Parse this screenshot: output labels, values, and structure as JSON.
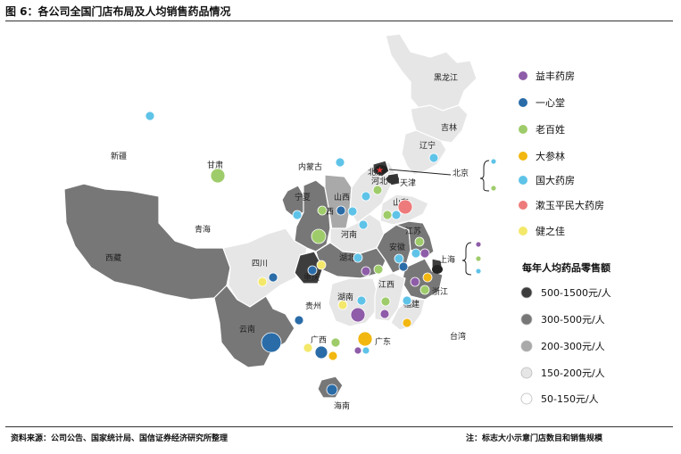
{
  "header": {
    "title": "图 6：各公司全国门店布局及人均销售药品情况"
  },
  "footer": {
    "source": "资料来源：公司公告、国家统计局、国信证券经济研究所整理",
    "note": "注：标志大小示意门店数目和销售规模"
  },
  "companies": [
    {
      "name": "益丰药房",
      "color": "#8e5ca8"
    },
    {
      "name": "一心堂",
      "color": "#2a6ca8"
    },
    {
      "name": "老百姓",
      "color": "#9fcc6a"
    },
    {
      "name": "大参林",
      "color": "#f2b710"
    },
    {
      "name": "国大药房",
      "color": "#5fc3e8"
    },
    {
      "name": "漱玉平民大药房",
      "color": "#ee7b7b"
    },
    {
      "name": "健之佳",
      "color": "#f3e86a"
    }
  ],
  "scale_legend": {
    "title": "每年人均药品零售额",
    "items": [
      {
        "label": "500-1500元/人",
        "color": "#3d3d3d"
      },
      {
        "label": "300-500元/人",
        "color": "#777777"
      },
      {
        "label": "200-300元/人",
        "color": "#a9a9a9"
      },
      {
        "label": "150-200元/人",
        "color": "#e6e6e6"
      },
      {
        "label": "50-150元/人",
        "color": "#ffffff"
      }
    ]
  },
  "provinces": [
    {
      "name": "黑龙江",
      "tier": "150-200元/人"
    },
    {
      "name": "吉林",
      "tier": "150-200元/人"
    },
    {
      "name": "辽宁",
      "tier": "150-200元/人"
    },
    {
      "name": "内蒙古",
      "tier": "50-150元/人"
    },
    {
      "name": "新疆",
      "tier": "50-150元/人"
    },
    {
      "name": "甘肃",
      "tier": "50-150元/人"
    },
    {
      "name": "青海",
      "tier": "50-150元/人"
    },
    {
      "name": "西藏",
      "tier": "300-500元/人"
    },
    {
      "name": "四川",
      "tier": "150-200元/人"
    },
    {
      "name": "云南",
      "tier": "300-500元/人"
    },
    {
      "name": "贵州",
      "tier": "50-150元/人"
    },
    {
      "name": "广西",
      "tier": "50-150元/人"
    },
    {
      "name": "广东",
      "tier": "50-150元/人"
    },
    {
      "name": "海南",
      "tier": "300-500元/人"
    },
    {
      "name": "宁夏",
      "tier": "300-500元/人"
    },
    {
      "name": "陕西",
      "tier": "300-500元/人"
    },
    {
      "name": "山西",
      "tier": "200-300元/人"
    },
    {
      "name": "河北",
      "tier": "150-200元/人"
    },
    {
      "name": "北京",
      "tier": "500-1500元/人"
    },
    {
      "name": "天津",
      "tier": "500-1500元/人"
    },
    {
      "name": "山东",
      "tier": "150-200元/人"
    },
    {
      "name": "河南",
      "tier": "150-200元/人"
    },
    {
      "name": "湖北",
      "tier": "300-500元/人"
    },
    {
      "name": "湖南",
      "tier": "150-200元/人"
    },
    {
      "name": "重庆",
      "tier": "500-1500元/人"
    },
    {
      "name": "安徽",
      "tier": "300-500元/人"
    },
    {
      "name": "江苏",
      "tier": "300-500元/人"
    },
    {
      "name": "上海",
      "tier": "500-1500元/人"
    },
    {
      "name": "浙江",
      "tier": "300-500元/人"
    },
    {
      "name": "江西",
      "tier": "150-200元/人"
    },
    {
      "name": "福建",
      "tier": "150-200元/人"
    },
    {
      "name": "台湾",
      "tier": "50-150元/人"
    }
  ]
}
